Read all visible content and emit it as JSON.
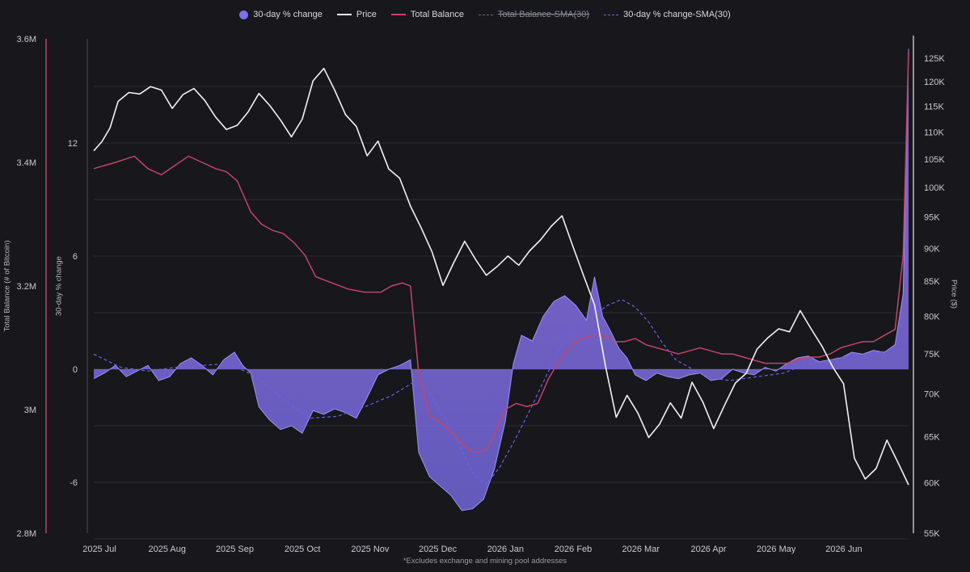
{
  "legend": [
    {
      "label": "30-day % change",
      "kind": "dot",
      "color": "#7b72e6",
      "struck": false
    },
    {
      "label": "Price",
      "kind": "line",
      "color": "#f2f2f2",
      "struck": false
    },
    {
      "label": "Total Balance",
      "kind": "line",
      "color": "#c2456b",
      "struck": false
    },
    {
      "label": "Total Balance-SMA(30)",
      "kind": "dash",
      "color": "#6b6b72",
      "struck": true
    },
    {
      "label": "30-day % change-SMA(30)",
      "kind": "dash",
      "color": "#6b62e0",
      "struck": false
    }
  ],
  "footnote": "*Excludes exchange and mining pool addresses",
  "chart_data": {
    "type": "line",
    "x_axis": {
      "labels": [
        "2025 Jul",
        "2025 Aug",
        "2025 Sep",
        "2025 Oct",
        "2025 Nov",
        "2025 Dec",
        "2026 Jan",
        "2026 Feb",
        "2026 Mar",
        "2026 Apr",
        "2026 May",
        "2026 Jun"
      ],
      "range": [
        "2025 Jul",
        "2026 Jun"
      ]
    },
    "axes": {
      "balance": {
        "title": "Total Balance (# of Bitcoin)",
        "ticks": [
          "3.6M",
          "3.4M",
          "3.2M",
          "3M",
          "2.8M"
        ],
        "range": [
          2800000,
          3600000
        ]
      },
      "pct": {
        "title": "30-day % change",
        "ticks": [
          "12",
          "6",
          "0",
          "-6"
        ],
        "range": [
          -8.7,
          17.5
        ]
      },
      "price": {
        "title": "Price ($)",
        "ticks": [
          "125K",
          "120K",
          "115K",
          "110K",
          "105K",
          "100K",
          "95K",
          "90K",
          "85K",
          "80K",
          "75K",
          "70K",
          "65K",
          "60K",
          "55K"
        ],
        "range": [
          55000,
          127000
        ],
        "scale": "log"
      }
    },
    "grid": true,
    "series": [
      {
        "name": "Price",
        "axis": "price",
        "color": "#f2f2f2",
        "points": [
          [
            0,
            106500
          ],
          [
            3,
            108200
          ],
          [
            6,
            110800
          ],
          [
            9,
            116000
          ],
          [
            13,
            117800
          ],
          [
            17,
            117500
          ],
          [
            21,
            119000
          ],
          [
            25,
            118300
          ],
          [
            29,
            114600
          ],
          [
            33,
            117400
          ],
          [
            37,
            118600
          ],
          [
            41,
            116200
          ],
          [
            45,
            112900
          ],
          [
            49,
            110500
          ],
          [
            53,
            111300
          ],
          [
            57,
            113900
          ],
          [
            61,
            117600
          ],
          [
            65,
            115200
          ],
          [
            69,
            112300
          ],
          [
            73,
            109100
          ],
          [
            77,
            112500
          ],
          [
            81,
            120200
          ],
          [
            85,
            122800
          ],
          [
            89,
            118300
          ],
          [
            93,
            113400
          ],
          [
            97,
            111100
          ],
          [
            101,
            105600
          ],
          [
            105,
            108300
          ],
          [
            109,
            103200
          ],
          [
            113,
            101600
          ],
          [
            117,
            96800
          ],
          [
            121,
            93200
          ],
          [
            125,
            89400
          ],
          [
            129,
            84400
          ],
          [
            133,
            87800
          ],
          [
            137,
            91100
          ],
          [
            141,
            88300
          ],
          [
            145,
            85900
          ],
          [
            149,
            87200
          ],
          [
            153,
            88800
          ],
          [
            157,
            87400
          ],
          [
            161,
            89600
          ],
          [
            165,
            91300
          ],
          [
            169,
            93500
          ],
          [
            173,
            95200
          ],
          [
            177,
            90300
          ],
          [
            181,
            85800
          ],
          [
            185,
            81600
          ],
          [
            189,
            73500
          ],
          [
            193,
            67200
          ],
          [
            197,
            69800
          ],
          [
            201,
            67700
          ],
          [
            205,
            64900
          ],
          [
            209,
            66400
          ],
          [
            213,
            68900
          ],
          [
            217,
            67100
          ],
          [
            221,
            71400
          ],
          [
            225,
            69000
          ],
          [
            229,
            65900
          ],
          [
            233,
            68600
          ],
          [
            237,
            71300
          ],
          [
            241,
            72500
          ],
          [
            245,
            75600
          ],
          [
            249,
            77100
          ],
          [
            253,
            78300
          ],
          [
            257,
            77900
          ],
          [
            261,
            80800
          ],
          [
            265,
            78300
          ],
          [
            269,
            76000
          ],
          [
            273,
            73300
          ],
          [
            277,
            71200
          ],
          [
            281,
            62600
          ],
          [
            285,
            60400
          ],
          [
            289,
            61500
          ],
          [
            293,
            64600
          ],
          [
            297,
            62200
          ],
          [
            301,
            59800
          ]
        ]
      },
      {
        "name": "Total Balance",
        "axis": "balance",
        "color": "#c2456b",
        "points": [
          [
            0,
            3390000.0
          ],
          [
            8,
            3400000.0
          ],
          [
            15,
            3410000.0
          ],
          [
            20,
            3390000.0
          ],
          [
            25,
            3380000.0
          ],
          [
            30,
            3395000.0
          ],
          [
            35,
            3410000.0
          ],
          [
            40,
            3400000.0
          ],
          [
            45,
            3390000.0
          ],
          [
            49,
            3385000.0
          ],
          [
            53,
            3370000.0
          ],
          [
            58,
            3320000.0
          ],
          [
            62,
            3300000.0
          ],
          [
            66,
            3290000.0
          ],
          [
            70,
            3285000.0
          ],
          [
            74,
            3270000.0
          ],
          [
            78,
            3250000.0
          ],
          [
            82,
            3215000.0
          ],
          [
            88,
            3205000.0
          ],
          [
            94,
            3195000.0
          ],
          [
            100,
            3190000.0
          ],
          [
            106,
            3190000.0
          ],
          [
            110,
            3200000.0
          ],
          [
            114,
            3205000.0
          ],
          [
            117,
            3200000.0
          ],
          [
            120,
            3060000.0
          ],
          [
            124,
            2990000.0
          ],
          [
            128,
            2980000.0
          ],
          [
            133,
            2960000.0
          ],
          [
            137,
            2940000.0
          ],
          [
            141,
            2930000.0
          ],
          [
            145,
            2935000.0
          ],
          [
            148,
            2960000.0
          ],
          [
            152,
            3000000.0
          ],
          [
            156,
            3010000.0
          ],
          [
            160,
            3005000.0
          ],
          [
            164,
            3010000.0
          ],
          [
            168,
            3050000.0
          ],
          [
            172,
            3080000.0
          ],
          [
            176,
            3100000.0
          ],
          [
            180,
            3115000.0
          ],
          [
            184,
            3120000.0
          ],
          [
            188,
            3120000.0
          ],
          [
            192,
            3110000.0
          ],
          [
            196,
            3110000.0
          ],
          [
            200,
            3115000.0
          ],
          [
            204,
            3105000.0
          ],
          [
            208,
            3100000.0
          ],
          [
            212,
            3095000.0
          ],
          [
            216,
            3090000.0
          ],
          [
            220,
            3095000.0
          ],
          [
            224,
            3100000.0
          ],
          [
            228,
            3095000.0
          ],
          [
            232,
            3090000.0
          ],
          [
            236,
            3090000.0
          ],
          [
            240,
            3085000.0
          ],
          [
            244,
            3080000.0
          ],
          [
            248,
            3075000.0
          ],
          [
            252,
            3075000.0
          ],
          [
            256,
            3075000.0
          ],
          [
            260,
            3080000.0
          ],
          [
            264,
            3085000.0
          ],
          [
            268,
            3085000.0
          ],
          [
            272,
            3090000.0
          ],
          [
            276,
            3100000.0
          ],
          [
            280,
            3105000.0
          ],
          [
            284,
            3110000.0
          ],
          [
            288,
            3110000.0
          ],
          [
            292,
            3120000.0
          ],
          [
            296,
            3130000.0
          ],
          [
            299,
            3250000.0
          ],
          [
            301,
            3580000.0
          ]
        ]
      },
      {
        "name": "30-day % change",
        "axis": "pct",
        "color": "#7b72e6",
        "points": [
          [
            0,
            -0.5
          ],
          [
            4,
            -0.2
          ],
          [
            8,
            0.2
          ],
          [
            12,
            -0.4
          ],
          [
            16,
            -0.1
          ],
          [
            20,
            0.2
          ],
          [
            24,
            -0.6
          ],
          [
            28,
            -0.4
          ],
          [
            32,
            0.3
          ],
          [
            36,
            0.6
          ],
          [
            40,
            0.2
          ],
          [
            44,
            -0.3
          ],
          [
            48,
            0.5
          ],
          [
            52,
            0.9
          ],
          [
            55,
            0.2
          ],
          [
            58,
            -0.2
          ],
          [
            61,
            -2.0
          ],
          [
            65,
            -2.7
          ],
          [
            69,
            -3.2
          ],
          [
            73,
            -3.0
          ],
          [
            77,
            -3.4
          ],
          [
            81,
            -2.2
          ],
          [
            85,
            -2.4
          ],
          [
            89,
            -2.1
          ],
          [
            93,
            -2.3
          ],
          [
            97,
            -2.6
          ],
          [
            101,
            -1.5
          ],
          [
            105,
            -0.3
          ],
          [
            109,
            0.0
          ],
          [
            113,
            0.2
          ],
          [
            117,
            0.5
          ],
          [
            120,
            -4.4
          ],
          [
            124,
            -5.7
          ],
          [
            128,
            -6.2
          ],
          [
            132,
            -6.7
          ],
          [
            136,
            -7.5
          ],
          [
            140,
            -7.4
          ],
          [
            144,
            -6.9
          ],
          [
            148,
            -5.3
          ],
          [
            152,
            -2.8
          ],
          [
            155,
            0.3
          ],
          [
            158,
            1.8
          ],
          [
            162,
            1.5
          ],
          [
            166,
            2.8
          ],
          [
            170,
            3.6
          ],
          [
            174,
            3.9
          ],
          [
            178,
            3.4
          ],
          [
            182,
            2.6
          ],
          [
            185,
            4.9
          ],
          [
            188,
            2.8
          ],
          [
            191,
            2.0
          ],
          [
            194,
            1.1
          ],
          [
            197,
            0.6
          ],
          [
            200,
            -0.3
          ],
          [
            204,
            -0.6
          ],
          [
            208,
            -0.2
          ],
          [
            212,
            -0.4
          ],
          [
            216,
            -0.5
          ],
          [
            220,
            -0.3
          ],
          [
            224,
            -0.2
          ],
          [
            228,
            -0.6
          ],
          [
            232,
            -0.5
          ],
          [
            236,
            0.0
          ],
          [
            240,
            -0.2
          ],
          [
            244,
            -0.3
          ],
          [
            248,
            0.1
          ],
          [
            252,
            -0.1
          ],
          [
            256,
            0.3
          ],
          [
            260,
            0.6
          ],
          [
            264,
            0.7
          ],
          [
            268,
            0.4
          ],
          [
            272,
            0.5
          ],
          [
            276,
            0.6
          ],
          [
            280,
            0.9
          ],
          [
            284,
            0.8
          ],
          [
            288,
            1.0
          ],
          [
            292,
            0.9
          ],
          [
            296,
            1.3
          ],
          [
            299,
            4.0
          ],
          [
            301,
            17.0
          ]
        ]
      },
      {
        "name": "30-day % change-SMA(30)",
        "axis": "pct",
        "color": "#6b62e0",
        "style": "dashed",
        "points": [
          [
            0,
            0.8
          ],
          [
            10,
            0.1
          ],
          [
            20,
            -0.1
          ],
          [
            30,
            0.1
          ],
          [
            40,
            0.2
          ],
          [
            50,
            0.3
          ],
          [
            60,
            -0.4
          ],
          [
            70,
            -1.6
          ],
          [
            80,
            -2.6
          ],
          [
            90,
            -2.5
          ],
          [
            100,
            -2.0
          ],
          [
            110,
            -1.4
          ],
          [
            118,
            -0.7
          ],
          [
            122,
            -0.9
          ],
          [
            128,
            -2.2
          ],
          [
            134,
            -3.7
          ],
          [
            140,
            -5.5
          ],
          [
            145,
            -6.1
          ],
          [
            150,
            -5.2
          ],
          [
            155,
            -3.9
          ],
          [
            160,
            -2.5
          ],
          [
            165,
            -1.0
          ],
          [
            170,
            0.5
          ],
          [
            175,
            1.8
          ],
          [
            180,
            2.5
          ],
          [
            185,
            2.9
          ],
          [
            190,
            3.4
          ],
          [
            195,
            3.7
          ],
          [
            200,
            3.3
          ],
          [
            205,
            2.5
          ],
          [
            210,
            1.4
          ],
          [
            215,
            0.5
          ],
          [
            220,
            0.1
          ],
          [
            225,
            -0.3
          ],
          [
            230,
            -0.5
          ],
          [
            235,
            -0.6
          ],
          [
            240,
            -0.5
          ],
          [
            245,
            -0.4
          ],
          [
            250,
            -0.3
          ],
          [
            255,
            -0.2
          ],
          [
            260,
            0.1
          ],
          [
            265,
            0.3
          ],
          [
            270,
            0.4
          ],
          [
            275,
            0.6
          ],
          [
            280,
            0.7
          ],
          [
            285,
            0.8
          ],
          [
            290,
            0.9
          ],
          [
            295,
            1.0
          ],
          [
            301,
            1.1
          ]
        ]
      }
    ]
  }
}
